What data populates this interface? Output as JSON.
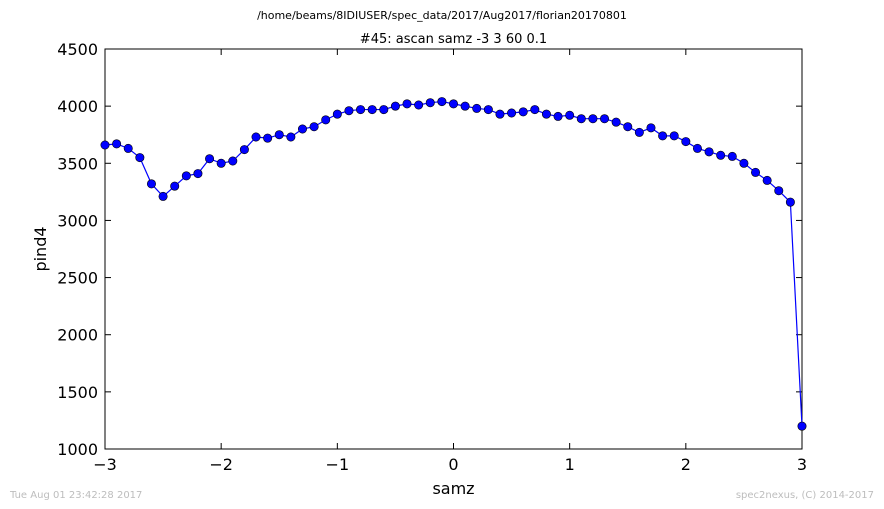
{
  "header": {
    "path": "/home/beams/8IDIUSER/spec_data/2017/Aug2017/florian20170801"
  },
  "footer": {
    "timestamp": "Tue Aug 01 23:42:28 2017",
    "credit": "spec2nexus, (C) 2014-2017"
  },
  "chart_data": {
    "type": "line",
    "title": "#45: ascan  samz -3 3  60 0.1",
    "xlabel": "samz",
    "ylabel": "pind4",
    "xlim": [
      -3,
      3
    ],
    "ylim": [
      1000,
      4500
    ],
    "xticks": [
      -3,
      -2,
      -1,
      0,
      1,
      2,
      3
    ],
    "xtick_labels": [
      "−3",
      "−2",
      "−1",
      "0",
      "1",
      "2",
      "3"
    ],
    "yticks": [
      1000,
      1500,
      2000,
      2500,
      3000,
      3500,
      4000,
      4500
    ],
    "ytick_labels": [
      "1000",
      "1500",
      "2000",
      "2500",
      "3000",
      "3500",
      "4000",
      "4500"
    ],
    "grid": false,
    "marker": "circle",
    "color": "#0000ff",
    "series": [
      {
        "x": [
          -3.0,
          -2.9,
          -2.8,
          -2.7,
          -2.6,
          -2.5,
          -2.4,
          -2.3,
          -2.2,
          -2.1,
          -2.0,
          -1.9,
          -1.8,
          -1.7,
          -1.6,
          -1.5,
          -1.4,
          -1.3,
          -1.2,
          -1.1,
          -1.0,
          -0.9,
          -0.8,
          -0.7,
          -0.6,
          -0.5,
          -0.4,
          -0.3,
          -0.2,
          -0.1,
          0.0,
          0.1,
          0.2,
          0.3,
          0.4,
          0.5,
          0.6,
          0.7,
          0.8,
          0.9,
          1.0,
          1.1,
          1.2,
          1.3,
          1.4,
          1.5,
          1.6,
          1.7,
          1.8,
          1.9,
          2.0,
          2.1,
          2.2,
          2.3,
          2.4,
          2.5,
          2.6,
          2.7,
          2.8,
          2.9,
          3.0
        ],
        "values": [
          3660,
          3670,
          3630,
          3550,
          3320,
          3210,
          3300,
          3390,
          3410,
          3540,
          3500,
          3520,
          3620,
          3730,
          3720,
          3750,
          3730,
          3800,
          3820,
          3880,
          3930,
          3960,
          3970,
          3970,
          3970,
          4000,
          4020,
          4010,
          4030,
          4040,
          4020,
          4000,
          3980,
          3970,
          3930,
          3940,
          3950,
          3970,
          3930,
          3910,
          3920,
          3890,
          3890,
          3890,
          3860,
          3820,
          3770,
          3810,
          3740,
          3740,
          3690,
          3630,
          3600,
          3570,
          3560,
          3500,
          3420,
          3350,
          3260,
          3160,
          1200
        ]
      }
    ]
  }
}
